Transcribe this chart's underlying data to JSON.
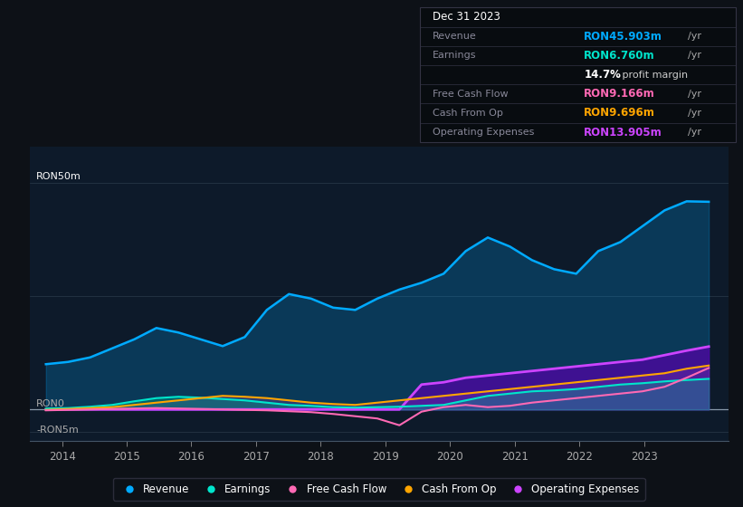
{
  "bg_color": "#0d1117",
  "plot_bg_color": "#0d1a2a",
  "colors": {
    "revenue": "#00aaff",
    "earnings": "#00e5cc",
    "free_cash_flow": "#ff69b4",
    "cash_from_op": "#ffa500",
    "operating_expenses": "#cc44ff"
  },
  "legend": [
    {
      "label": "Revenue",
      "color": "#00aaff"
    },
    {
      "label": "Earnings",
      "color": "#00e5cc"
    },
    {
      "label": "Free Cash Flow",
      "color": "#ff69b4"
    },
    {
      "label": "Cash From Op",
      "color": "#ffa500"
    },
    {
      "label": "Operating Expenses",
      "color": "#cc44ff"
    }
  ],
  "x_ticks": [
    2014,
    2015,
    2016,
    2017,
    2018,
    2019,
    2020,
    2021,
    2022,
    2023
  ],
  "revenue": [
    10.0,
    10.5,
    11.5,
    13.5,
    15.5,
    18.0,
    17.0,
    15.5,
    14.0,
    16.0,
    22.0,
    25.5,
    24.5,
    22.5,
    22.0,
    24.5,
    26.5,
    28.0,
    30.0,
    35.0,
    38.0,
    36.0,
    33.0,
    31.0,
    30.0,
    35.0,
    37.0,
    40.5,
    44.0,
    46.0,
    45.9
  ],
  "earnings": [
    0.2,
    0.3,
    0.6,
    1.0,
    1.8,
    2.5,
    2.8,
    2.6,
    2.3,
    2.0,
    1.5,
    1.0,
    0.8,
    0.5,
    0.4,
    0.5,
    0.6,
    0.8,
    1.0,
    2.0,
    3.0,
    3.5,
    4.0,
    4.2,
    4.5,
    5.0,
    5.5,
    5.8,
    6.2,
    6.5,
    6.76
  ],
  "free_cash_flow": [
    -0.2,
    -0.1,
    0.0,
    0.1,
    0.2,
    0.3,
    0.2,
    0.1,
    0.0,
    -0.1,
    -0.2,
    -0.4,
    -0.6,
    -1.0,
    -1.5,
    -2.0,
    -3.5,
    -0.5,
    0.5,
    1.0,
    0.5,
    0.8,
    1.5,
    2.0,
    2.5,
    3.0,
    3.5,
    4.0,
    5.0,
    7.0,
    9.16
  ],
  "cash_from_op": [
    -0.1,
    0.1,
    0.3,
    0.5,
    1.0,
    1.5,
    2.0,
    2.5,
    3.0,
    2.8,
    2.5,
    2.0,
    1.5,
    1.2,
    1.0,
    1.5,
    2.0,
    2.5,
    3.0,
    3.5,
    4.0,
    4.5,
    5.0,
    5.5,
    6.0,
    6.5,
    7.0,
    7.5,
    8.0,
    9.0,
    9.7
  ],
  "operating_expenses": [
    0.0,
    0.0,
    0.0,
    0.0,
    0.0,
    0.0,
    0.0,
    0.0,
    0.0,
    0.0,
    0.0,
    0.0,
    0.0,
    0.0,
    0.0,
    0.0,
    0.0,
    5.5,
    6.0,
    7.0,
    7.5,
    8.0,
    8.5,
    9.0,
    9.5,
    10.0,
    10.5,
    11.0,
    12.0,
    13.0,
    13.9
  ],
  "ylim": [
    -7.0,
    58.0
  ],
  "xlim": [
    2013.5,
    2024.3
  ]
}
